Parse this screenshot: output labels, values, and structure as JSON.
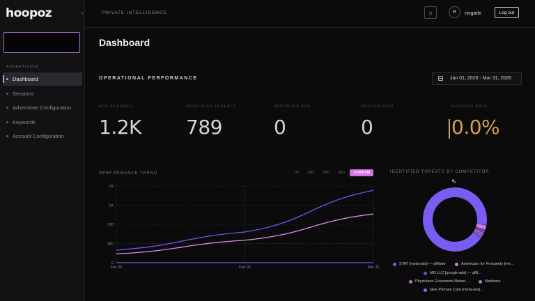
{
  "app": {
    "logo": "hoopoz",
    "collapse_icon": "chevron-left-icon"
  },
  "sidebar": {
    "section": "ADVERTISING",
    "items": [
      {
        "label": "Dashboard",
        "active": true
      },
      {
        "label": "Sessions",
        "active": false
      },
      {
        "label": "Adverstiser Configuration",
        "active": false
      },
      {
        "label": "Keywords",
        "active": false
      },
      {
        "label": "Account Configuration",
        "active": false
      }
    ]
  },
  "topbar": {
    "title": "PRIVATE INTELLIGENCE",
    "theme_icon": "sun-icon",
    "avatar_initial": "R",
    "username": "ringaile",
    "logout_label": "Log out"
  },
  "main": {
    "page_title": "Dashboard",
    "section_title": "OPERATIONAL PERFORMANCE",
    "date_range": "Jan 01, 2026 - Mar 31, 2026",
    "kpis": [
      {
        "label": "ADS SCANNED",
        "value": "1.2K"
      },
      {
        "label": "IDENTIFIED THREATS",
        "value": "789"
      },
      {
        "label": "REPORTED ADS",
        "value": "0"
      },
      {
        "label": "NEUTRALIZED",
        "value": "0"
      },
      {
        "label": "SUCCESS RATE",
        "value": "0.0%"
      }
    ],
    "trend": {
      "title": "PERFORMANCE TREND",
      "ranges": [
        {
          "label": "7D",
          "active": false
        },
        {
          "label": "14D",
          "active": false
        },
        {
          "label": "30D",
          "active": false
        },
        {
          "label": "90D",
          "active": false
        },
        {
          "label": "CUSTOM",
          "active": true
        }
      ]
    },
    "competitors": {
      "title": "IDENTIFIED THREATS BY COMPETITOR",
      "legend": [
        {
          "label": "STAT [meta-ads] — affiliate",
          "color": "#7b5cf0"
        },
        {
          "label": "Americans for Prosperity [me...",
          "color": "#d07be0"
        },
        {
          "label": "MG LLC [google-ads] — affil...",
          "color": "#6a4fd8"
        },
        {
          "label": "Physicians Grassroots Netwo...",
          "color": "#c06ad8"
        },
        {
          "label": "Medicare",
          "color": "#b06cf0"
        },
        {
          "label": "New Primary Care [meta-ads]...",
          "color": "#8a6cf4"
        }
      ]
    }
  },
  "chart_data": {
    "type": "line",
    "title": "PERFORMANCE TREND",
    "x_ticks": [
      "Jan 26",
      "Feb 26",
      "Mar 26"
    ],
    "y_ticks": [
      "0",
      "350",
      "700",
      "1K",
      "1K"
    ],
    "ylim": [
      0,
      1400
    ],
    "x_points": [
      "Jan 26",
      "Feb 26",
      "Mar 26"
    ],
    "series": [
      {
        "values": [
          230,
          560,
          1320
        ],
        "color": "#6f55f0"
      },
      {
        "values": [
          160,
          410,
          890
        ],
        "color": "#d890e8"
      },
      {
        "values": [
          0,
          0,
          0
        ],
        "color": "#6f55f0"
      }
    ],
    "pie": {
      "type": "pie",
      "slices": [
        {
          "label": "STAT [meta-ads] — affiliate",
          "value": 93,
          "color": "#7b5cf0"
        },
        {
          "label": "Americans for Prosperity [me...",
          "value": 2.5,
          "color": "#d07be0"
        },
        {
          "label": "MG LLC [google-ads] — affil...",
          "value": 1.5,
          "color": "#6a4fd8"
        },
        {
          "label": "Physicians Grassroots Netwo...",
          "value": 1.2,
          "color": "#c06ad8"
        },
        {
          "label": "Medicare",
          "value": 1.0,
          "color": "#b06cf0"
        },
        {
          "label": "New Primary Care [meta-ads]...",
          "value": 0.8,
          "color": "#8a6cf4"
        }
      ]
    }
  }
}
